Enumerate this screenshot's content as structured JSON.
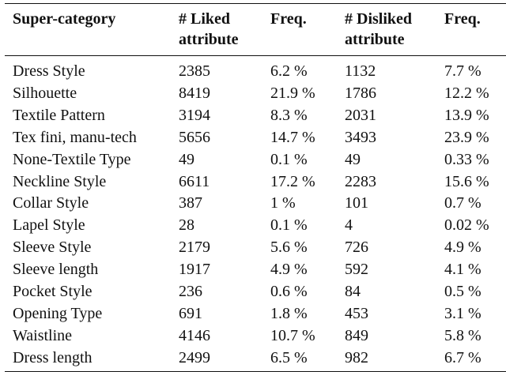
{
  "table": {
    "headers": {
      "col0": "Super-category",
      "col1_line1": "# Liked",
      "col1_line2": "attribute",
      "col2": "Freq.",
      "col3_line1": "# Disliked",
      "col3_line2": "attribute",
      "col4": "Freq."
    },
    "rows": [
      [
        "Dress Style",
        "2385",
        "6.2 %",
        "1132",
        "7.7 %"
      ],
      [
        "Silhouette",
        "8419",
        "21.9 %",
        "1786",
        "12.2 %"
      ],
      [
        "Textile Pattern",
        "3194",
        "8.3 %",
        "2031",
        "13.9 %"
      ],
      [
        "Tex fini, manu-tech",
        "5656",
        "14.7 %",
        "3493",
        "23.9 %"
      ],
      [
        "None-Textile Type",
        "49",
        "0.1 %",
        "49",
        "0.33 %"
      ],
      [
        "Neckline Style",
        "6611",
        "17.2 %",
        "2283",
        "15.6 %"
      ],
      [
        "Collar Style",
        "387",
        "1 %",
        "101",
        "0.7 %"
      ],
      [
        "Lapel Style",
        "28",
        "0.1 %",
        "4",
        "0.02 %"
      ],
      [
        "Sleeve Style",
        "2179",
        "5.6 %",
        "726",
        "4.9 %"
      ],
      [
        "Sleeve length",
        "1917",
        "4.9 %",
        "592",
        "4.1 %"
      ],
      [
        "Pocket Style",
        "236",
        "0.6 %",
        "84",
        "0.5 %"
      ],
      [
        "Opening Type",
        "691",
        "1.8 %",
        "453",
        "3.1 %"
      ],
      [
        "Waistline",
        "4146",
        "10.7 %",
        "849",
        "5.8 %"
      ],
      [
        "Dress length",
        "2499",
        "6.5 %",
        "982",
        "6.7 %"
      ]
    ]
  }
}
